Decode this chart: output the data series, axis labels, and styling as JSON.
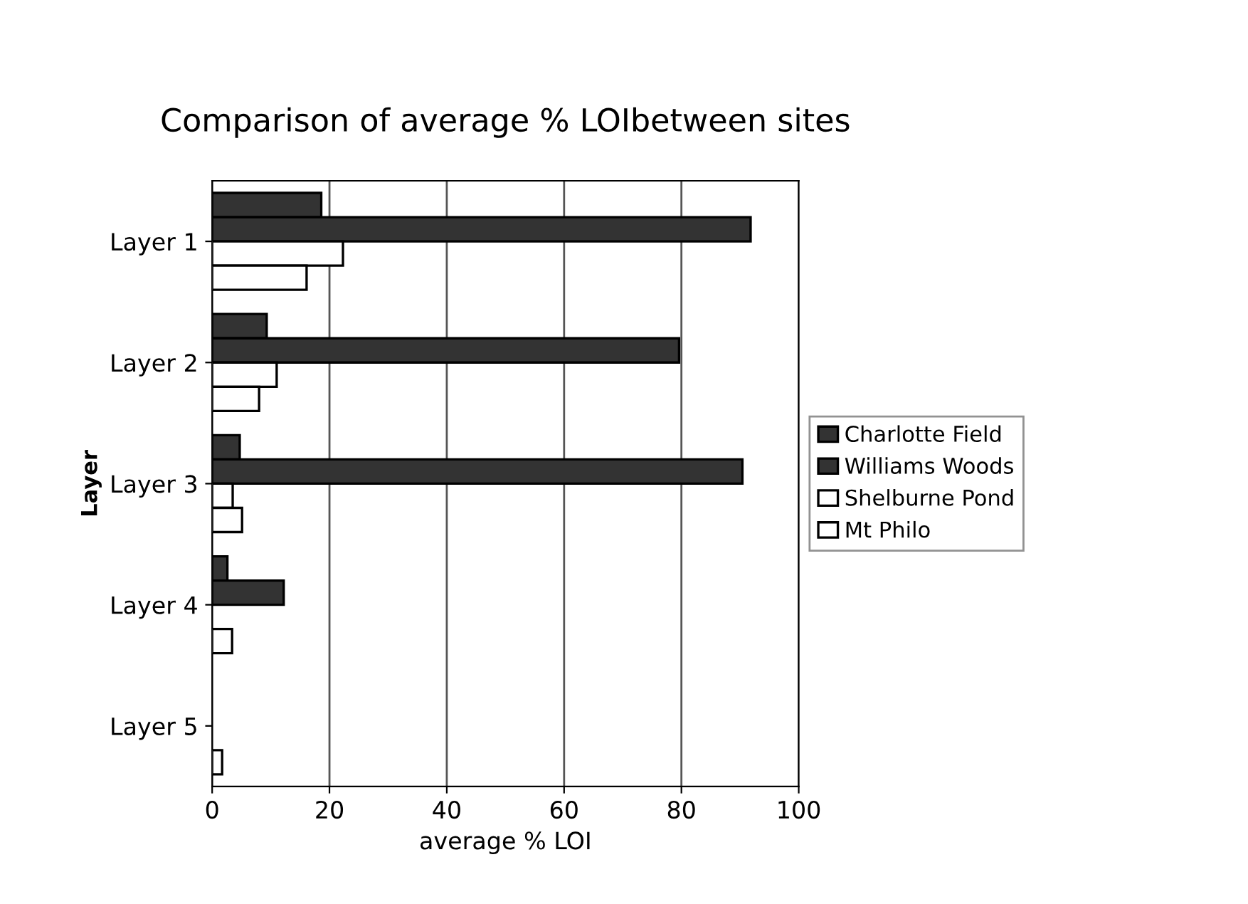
{
  "chart_data": {
    "type": "bar",
    "orientation": "horizontal",
    "title": "Comparison of average % LOIbetween sites",
    "xlabel": "average % LOI",
    "ylabel": "Layer",
    "categories": [
      "Layer 1",
      "Layer 2",
      "Layer 3",
      "Layer 4",
      "Layer 5"
    ],
    "series": [
      {
        "name": "Charlotte Field",
        "color": "#333333",
        "values": [
          18.6,
          9.3,
          4.7,
          2.6,
          null
        ]
      },
      {
        "name": "Williams Woods",
        "color": "#333333",
        "values": [
          91.8,
          79.6,
          90.4,
          12.2,
          null
        ]
      },
      {
        "name": "Shelburne Pond",
        "color": "#ffffff",
        "values": [
          22.3,
          11,
          3.5,
          null,
          null
        ]
      },
      {
        "name": "Mt Philo",
        "color": "#ffffff",
        "values": [
          16.1,
          8,
          5.1,
          3.4,
          1.7
        ]
      }
    ],
    "xlim": [
      0,
      100
    ],
    "xticks": [
      0,
      20,
      40,
      60,
      80,
      100
    ],
    "grid": "x",
    "legend": "right"
  }
}
